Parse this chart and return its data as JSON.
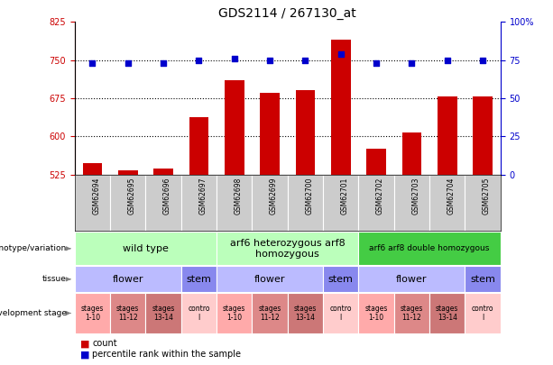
{
  "title": "GDS2114 / 267130_at",
  "samples": [
    "GSM62694",
    "GSM62695",
    "GSM62696",
    "GSM62697",
    "GSM62698",
    "GSM62699",
    "GSM62700",
    "GSM62701",
    "GSM62702",
    "GSM62703",
    "GSM62704",
    "GSM62705"
  ],
  "counts": [
    548,
    534,
    536,
    638,
    710,
    685,
    690,
    790,
    576,
    607,
    678,
    678
  ],
  "percentiles": [
    73,
    73,
    73,
    75,
    76,
    75,
    75,
    79,
    73,
    73,
    75,
    75
  ],
  "ylim_left": [
    525,
    825
  ],
  "ylim_right": [
    0,
    100
  ],
  "yticks_left": [
    525,
    600,
    675,
    750,
    825
  ],
  "yticks_right": [
    0,
    25,
    50,
    75,
    100
  ],
  "bar_color": "#cc0000",
  "dot_color": "#0000cc",
  "hline_values": [
    600,
    675,
    750
  ],
  "genotype_groups": [
    {
      "label": "wild type",
      "start": 0,
      "end": 4,
      "color": "#bbffbb",
      "fontsize": 8
    },
    {
      "label": "arf6 heterozygous arf8\nhomozygous",
      "start": 4,
      "end": 8,
      "color": "#bbffbb",
      "fontsize": 8
    },
    {
      "label": "arf6 arf8 double homozygous",
      "start": 8,
      "end": 12,
      "color": "#44cc44",
      "fontsize": 6.5
    }
  ],
  "tissue_groups": [
    {
      "label": "flower",
      "start": 0,
      "end": 3,
      "color": "#bbbbff"
    },
    {
      "label": "stem",
      "start": 3,
      "end": 4,
      "color": "#8888ee"
    },
    {
      "label": "flower",
      "start": 4,
      "end": 7,
      "color": "#bbbbff"
    },
    {
      "label": "stem",
      "start": 7,
      "end": 8,
      "color": "#8888ee"
    },
    {
      "label": "flower",
      "start": 8,
      "end": 11,
      "color": "#bbbbff"
    },
    {
      "label": "stem",
      "start": 11,
      "end": 12,
      "color": "#8888ee"
    }
  ],
  "stage_groups": [
    {
      "label": "stages\n1-10",
      "start": 0,
      "end": 1,
      "color": "#ffaaaa"
    },
    {
      "label": "stages\n11-12",
      "start": 1,
      "end": 2,
      "color": "#dd8888"
    },
    {
      "label": "stages\n13-14",
      "start": 2,
      "end": 3,
      "color": "#cc7777"
    },
    {
      "label": "contro\nl",
      "start": 3,
      "end": 4,
      "color": "#ffcccc"
    },
    {
      "label": "stages\n1-10",
      "start": 4,
      "end": 5,
      "color": "#ffaaaa"
    },
    {
      "label": "stages\n11-12",
      "start": 5,
      "end": 6,
      "color": "#dd8888"
    },
    {
      "label": "stages\n13-14",
      "start": 6,
      "end": 7,
      "color": "#cc7777"
    },
    {
      "label": "contro\nl",
      "start": 7,
      "end": 8,
      "color": "#ffcccc"
    },
    {
      "label": "stages\n1-10",
      "start": 8,
      "end": 9,
      "color": "#ffaaaa"
    },
    {
      "label": "stages\n11-12",
      "start": 9,
      "end": 10,
      "color": "#dd8888"
    },
    {
      "label": "stages\n13-14",
      "start": 10,
      "end": 11,
      "color": "#cc7777"
    },
    {
      "label": "contro\nl",
      "start": 11,
      "end": 12,
      "color": "#ffcccc"
    }
  ],
  "sample_bg_color": "#cccccc",
  "background_color": "#ffffff",
  "chart_bg_color": "#ffffff"
}
